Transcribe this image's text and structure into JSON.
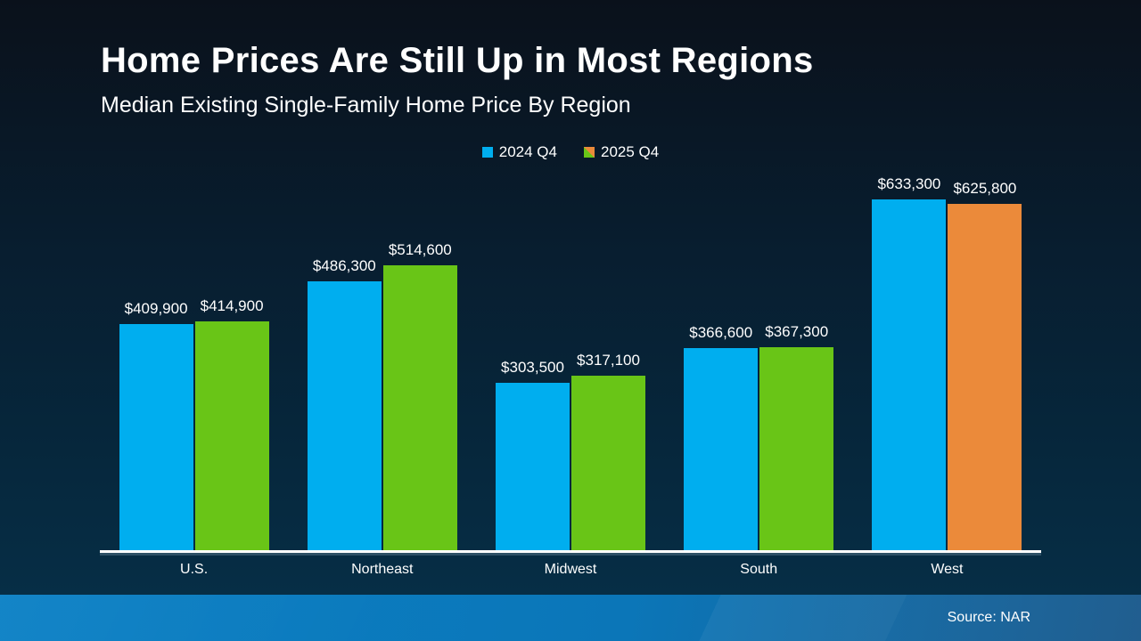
{
  "slide": {
    "title": "Home Prices Are Still Up in Most Regions",
    "subtitle": "Median Existing Single-Family Home Price By Region",
    "source": "Source: NAR"
  },
  "colors": {
    "background_top": "#0a111b",
    "background_bottom": "#063049",
    "bar_2024": "#00AEEF",
    "bar_2025_increase": "#69C517",
    "bar_2025_decrease": "#EB8A3A",
    "axis": "#FFFFFF",
    "text": "#FFFFFF",
    "footer_left": "#0A80C5",
    "footer_right": "#1D5B8D"
  },
  "legend": {
    "items": [
      {
        "label": "2024 Q4",
        "swatch_colors": [
          "#00AEEF"
        ]
      },
      {
        "label": "2025 Q4",
        "swatch_colors": [
          "#69C517",
          "#EB8A3A"
        ]
      }
    ]
  },
  "chart_data": {
    "type": "bar",
    "title": "Home Prices Are Still Up in Most Regions",
    "subtitle": "Median Existing Single-Family Home Price By Region",
    "categories": [
      "U.S.",
      "Northeast",
      "Midwest",
      "South",
      "West"
    ],
    "series": [
      {
        "name": "2024 Q4",
        "color": "#00AEEF",
        "values": [
          409900,
          486300,
          303500,
          366600,
          633300
        ],
        "labels": [
          "$409,900",
          "$486,300",
          "$303,500",
          "$366,600",
          "$633,300"
        ]
      },
      {
        "name": "2025 Q4",
        "color": "#69C517",
        "colors": [
          "#69C517",
          "#69C517",
          "#69C517",
          "#69C517",
          "#EB8A3A"
        ],
        "values": [
          414900,
          514600,
          317100,
          367300,
          625800
        ],
        "labels": [
          "$414,900",
          "$514,600",
          "$317,100",
          "$367,300",
          "$625,800"
        ]
      }
    ],
    "xlabel": "",
    "ylabel": "",
    "ylim": [
      0,
      633300
    ],
    "grid": false,
    "value_labels": true,
    "legend_position": "top-center"
  }
}
